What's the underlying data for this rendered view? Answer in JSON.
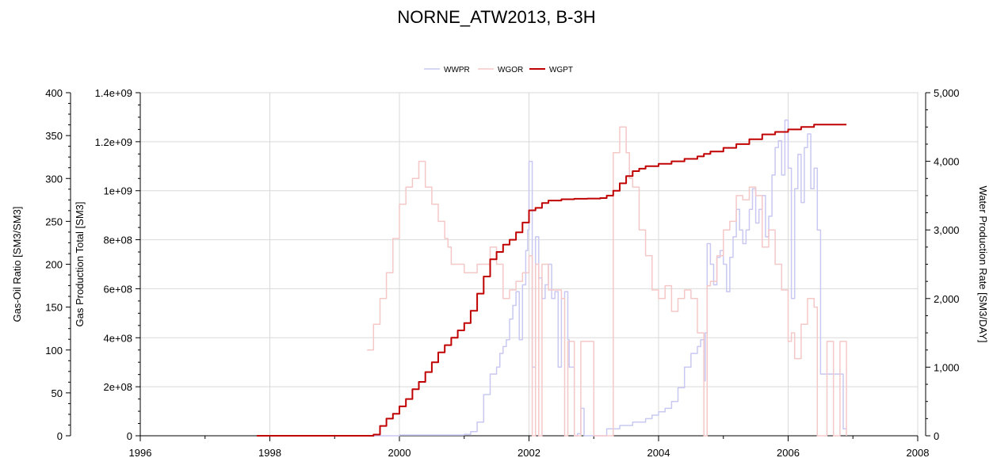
{
  "chart_data": {
    "type": "line",
    "title": "NORNE_ATW2013, B-3H",
    "xlim": [
      1996,
      2008
    ],
    "x_ticks": [
      "1996",
      "1998",
      "2000",
      "2002",
      "2004",
      "2006",
      "2008"
    ],
    "y_axes": [
      {
        "id": "wgor",
        "label": "Gas-Oil Ratio [SM3/SM3]",
        "side": "left-outer",
        "ylim": [
          0,
          400
        ],
        "ticks": [
          "0",
          "50",
          "100",
          "150",
          "200",
          "250",
          "300",
          "350",
          "400"
        ]
      },
      {
        "id": "wgpt",
        "label": "Gas Production Total [SM3]",
        "side": "left-inner",
        "ylim": [
          0,
          1400000000
        ],
        "ticks": [
          "0",
          "2e+08",
          "4e+08",
          "6e+08",
          "8e+08",
          "1e+09",
          "1.2e+09",
          "1.4e+09"
        ]
      },
      {
        "id": "wwpr",
        "label": "Water Production Rate [SM3/DAY]",
        "side": "right",
        "ylim": [
          0,
          5000
        ],
        "ticks": [
          "0",
          "1,000",
          "2,000",
          "3,000",
          "4,000",
          "5,000"
        ]
      }
    ],
    "grid": true,
    "legend_position": "top-center",
    "series": [
      {
        "name": "WWPR",
        "axis": "wwpr",
        "color": "#c8c8f2",
        "x": [
          1999.6,
          2000.0,
          2000.5,
          2001.0,
          2001.1,
          2001.2,
          2001.3,
          2001.4,
          2001.5,
          2001.55,
          2001.6,
          2001.65,
          2001.7,
          2001.75,
          2001.8,
          2001.85,
          2001.9,
          2001.95,
          2001.98,
          2002.0,
          2002.05,
          2002.1,
          2002.15,
          2002.2,
          2002.25,
          2002.3,
          2002.35,
          2002.4,
          2002.45,
          2002.5,
          2002.55,
          2002.6,
          2002.62,
          2002.7,
          2002.75,
          2002.8,
          2002.85,
          2002.9,
          2002.93,
          2003.0,
          2003.2,
          2003.4,
          2003.6,
          2003.7,
          2003.8,
          2003.9,
          2004.0,
          2004.1,
          2004.2,
          2004.3,
          2004.4,
          2004.5,
          2004.6,
          2004.65,
          2004.7,
          2004.72,
          2004.75,
          2004.8,
          2004.85,
          2004.9,
          2004.95,
          2005.0,
          2005.05,
          2005.1,
          2005.15,
          2005.2,
          2005.25,
          2005.3,
          2005.35,
          2005.4,
          2005.45,
          2005.5,
          2005.55,
          2005.6,
          2005.65,
          2005.7,
          2005.75,
          2005.8,
          2005.85,
          2005.9,
          2005.95,
          2006.0,
          2006.05,
          2006.1,
          2006.15,
          2006.2,
          2006.25,
          2006.3,
          2006.35,
          2006.4,
          2006.45,
          2006.5,
          2006.85,
          2006.9
        ],
        "values": [
          0,
          10,
          10,
          20,
          60,
          200,
          600,
          900,
          1000,
          1200,
          1300,
          1400,
          1700,
          1900,
          2100,
          1400,
          2200,
          2700,
          3000,
          4000,
          1000,
          2900,
          2300,
          2000,
          2200,
          2500,
          2000,
          2100,
          1000,
          2000,
          2100,
          1400,
          1000,
          0,
          30,
          400,
          0,
          0,
          0,
          0,
          100,
          150,
          200,
          200,
          250,
          300,
          350,
          400,
          500,
          700,
          1000,
          1200,
          1300,
          1400,
          800,
          1500,
          2800,
          2500,
          2200,
          2600,
          2700,
          2500,
          2100,
          2600,
          2900,
          3300,
          3000,
          2800,
          3000,
          3300,
          3600,
          3100,
          3300,
          3500,
          2900,
          3200,
          3800,
          4200,
          4300,
          3800,
          4600,
          3900,
          2000,
          3600,
          4100,
          3400,
          4200,
          4400,
          3600,
          3900,
          3000,
          900,
          100,
          100
        ]
      },
      {
        "name": "WGOR",
        "axis": "wgor",
        "color": "#f5c8c8",
        "x": [
          1999.5,
          1999.6,
          1999.7,
          1999.8,
          1999.9,
          2000.0,
          2000.1,
          2000.2,
          2000.3,
          2000.4,
          2000.5,
          2000.6,
          2000.7,
          2000.75,
          2000.8,
          2001.0,
          2001.2,
          2001.4,
          2001.5,
          2001.6,
          2001.7,
          2001.8,
          2001.9,
          2002.0,
          2002.05,
          2002.1,
          2002.15,
          2002.2,
          2002.3,
          2002.5,
          2002.55,
          2002.6,
          2002.7,
          2002.8,
          2003.0,
          2003.1,
          2003.2,
          2003.3,
          2003.4,
          2003.5,
          2003.55,
          2003.6,
          2003.7,
          2003.8,
          2003.9,
          2004.0,
          2004.1,
          2004.2,
          2004.3,
          2004.4,
          2004.5,
          2004.6,
          2004.7,
          2004.75,
          2004.8,
          2004.9,
          2005.0,
          2005.1,
          2005.2,
          2005.3,
          2005.4,
          2005.5,
          2005.6,
          2005.7,
          2005.8,
          2005.9,
          2006.0,
          2006.05,
          2006.1,
          2006.2,
          2006.3,
          2006.4,
          2006.45,
          2006.5,
          2006.6,
          2006.7,
          2006.8,
          2006.9
        ],
        "values": [
          100,
          130,
          160,
          190,
          230,
          270,
          290,
          300,
          320,
          290,
          270,
          250,
          230,
          220,
          200,
          190,
          200,
          220,
          200,
          160,
          170,
          180,
          190,
          210,
          0,
          200,
          0,
          200,
          170,
          160,
          0,
          110,
          0,
          110,
          0,
          0,
          0,
          330,
          360,
          330,
          300,
          290,
          240,
          210,
          170,
          160,
          175,
          145,
          160,
          170,
          160,
          120,
          0,
          175,
          180,
          210,
          240,
          250,
          280,
          275,
          290,
          280,
          220,
          240,
          200,
          170,
          110,
          120,
          90,
          130,
          160,
          150,
          0,
          0,
          110,
          0,
          110,
          0
        ]
      },
      {
        "name": "WGPT",
        "axis": "wgpt",
        "color": "#c00000",
        "x": [
          1997.8,
          1998.0,
          1998.5,
          1999.0,
          1999.5,
          1999.6,
          1999.7,
          1999.8,
          1999.9,
          2000.0,
          2000.1,
          2000.2,
          2000.3,
          2000.4,
          2000.5,
          2000.6,
          2000.7,
          2000.8,
          2000.9,
          2001.0,
          2001.1,
          2001.2,
          2001.3,
          2001.4,
          2001.5,
          2001.6,
          2001.7,
          2001.8,
          2001.9,
          2002.0,
          2002.1,
          2002.2,
          2002.3,
          2002.4,
          2002.5,
          2002.7,
          2002.9,
          2003.0,
          2003.1,
          2003.2,
          2003.3,
          2003.4,
          2003.5,
          2003.6,
          2003.7,
          2003.8,
          2004.0,
          2004.2,
          2004.4,
          2004.6,
          2004.7,
          2004.8,
          2005.0,
          2005.2,
          2005.4,
          2005.6,
          2005.8,
          2006.0,
          2006.2,
          2006.4,
          2006.6,
          2006.8,
          2006.9
        ],
        "values": [
          0,
          0,
          0,
          0,
          0,
          5000000,
          40000000,
          70000000,
          90000000,
          120000000,
          150000000,
          190000000,
          220000000,
          260000000,
          300000000,
          340000000,
          370000000,
          400000000,
          430000000,
          460000000,
          510000000,
          580000000,
          650000000,
          720000000,
          750000000,
          780000000,
          800000000,
          830000000,
          870000000,
          920000000,
          930000000,
          950000000,
          960000000,
          960000000,
          965000000,
          967000000,
          968000000,
          968000000,
          970000000,
          980000000,
          1000000000,
          1030000000,
          1060000000,
          1080000000,
          1090000000,
          1100000000,
          1110000000,
          1120000000,
          1130000000,
          1140000000,
          1150000000,
          1160000000,
          1175000000,
          1190000000,
          1210000000,
          1230000000,
          1240000000,
          1250000000,
          1260000000,
          1270000000,
          1270000000,
          1270000000,
          1270000000
        ]
      }
    ]
  }
}
